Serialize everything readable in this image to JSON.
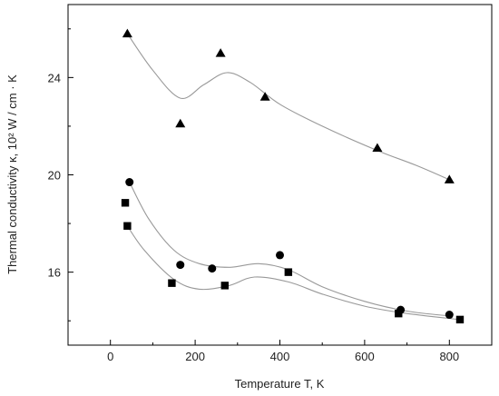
{
  "chart_data": {
    "type": "scatter",
    "title": "",
    "xlabel": "Temperature T, K",
    "ylabel": "Thermal conductivity κ, 10² W / cm · K",
    "xlim": [
      -100,
      900
    ],
    "ylim": [
      13.0,
      27.0
    ],
    "xticks": [
      "0",
      "200",
      "400",
      "600",
      "800"
    ],
    "yticks": [
      "16",
      "20",
      "24"
    ],
    "grid": false,
    "legend": "none",
    "series": [
      {
        "marker": "triangle",
        "points": [
          [
            40,
            25.8
          ],
          [
            165,
            22.1
          ],
          [
            260,
            25.0
          ],
          [
            365,
            23.2
          ],
          [
            630,
            21.1
          ],
          [
            800,
            19.8
          ]
        ],
        "fit": [
          [
            40,
            25.8
          ],
          [
            100,
            24.3
          ],
          [
            165,
            23.15
          ],
          [
            220,
            23.7
          ],
          [
            275,
            24.2
          ],
          [
            330,
            23.8
          ],
          [
            400,
            22.9
          ],
          [
            500,
            22.0
          ],
          [
            630,
            21.0
          ],
          [
            720,
            20.4
          ],
          [
            800,
            19.8
          ]
        ]
      },
      {
        "marker": "circle",
        "points": [
          [
            45,
            19.7
          ],
          [
            165,
            16.3
          ],
          [
            240,
            16.15
          ],
          [
            400,
            16.7
          ],
          [
            685,
            14.45
          ],
          [
            800,
            14.25
          ]
        ],
        "fit": [
          [
            45,
            19.7
          ],
          [
            90,
            18.2
          ],
          [
            150,
            16.9
          ],
          [
            210,
            16.35
          ],
          [
            280,
            16.2
          ],
          [
            350,
            16.35
          ],
          [
            420,
            16.1
          ],
          [
            500,
            15.4
          ],
          [
            600,
            14.8
          ],
          [
            700,
            14.4
          ],
          [
            800,
            14.2
          ]
        ]
      },
      {
        "marker": "square",
        "points": [
          [
            35,
            18.85
          ],
          [
            40,
            17.9
          ],
          [
            145,
            15.55
          ],
          [
            270,
            15.45
          ],
          [
            420,
            16.0
          ],
          [
            680,
            14.3
          ],
          [
            825,
            14.05
          ]
        ],
        "fit": [
          [
            40,
            17.9
          ],
          [
            80,
            16.9
          ],
          [
            150,
            15.7
          ],
          [
            210,
            15.3
          ],
          [
            280,
            15.45
          ],
          [
            340,
            15.8
          ],
          [
            420,
            15.6
          ],
          [
            500,
            15.1
          ],
          [
            600,
            14.6
          ],
          [
            700,
            14.3
          ],
          [
            825,
            14.05
          ]
        ]
      }
    ],
    "colors": {
      "marker": "#000000",
      "fit_line": "#999999",
      "axes": "#000000"
    }
  }
}
